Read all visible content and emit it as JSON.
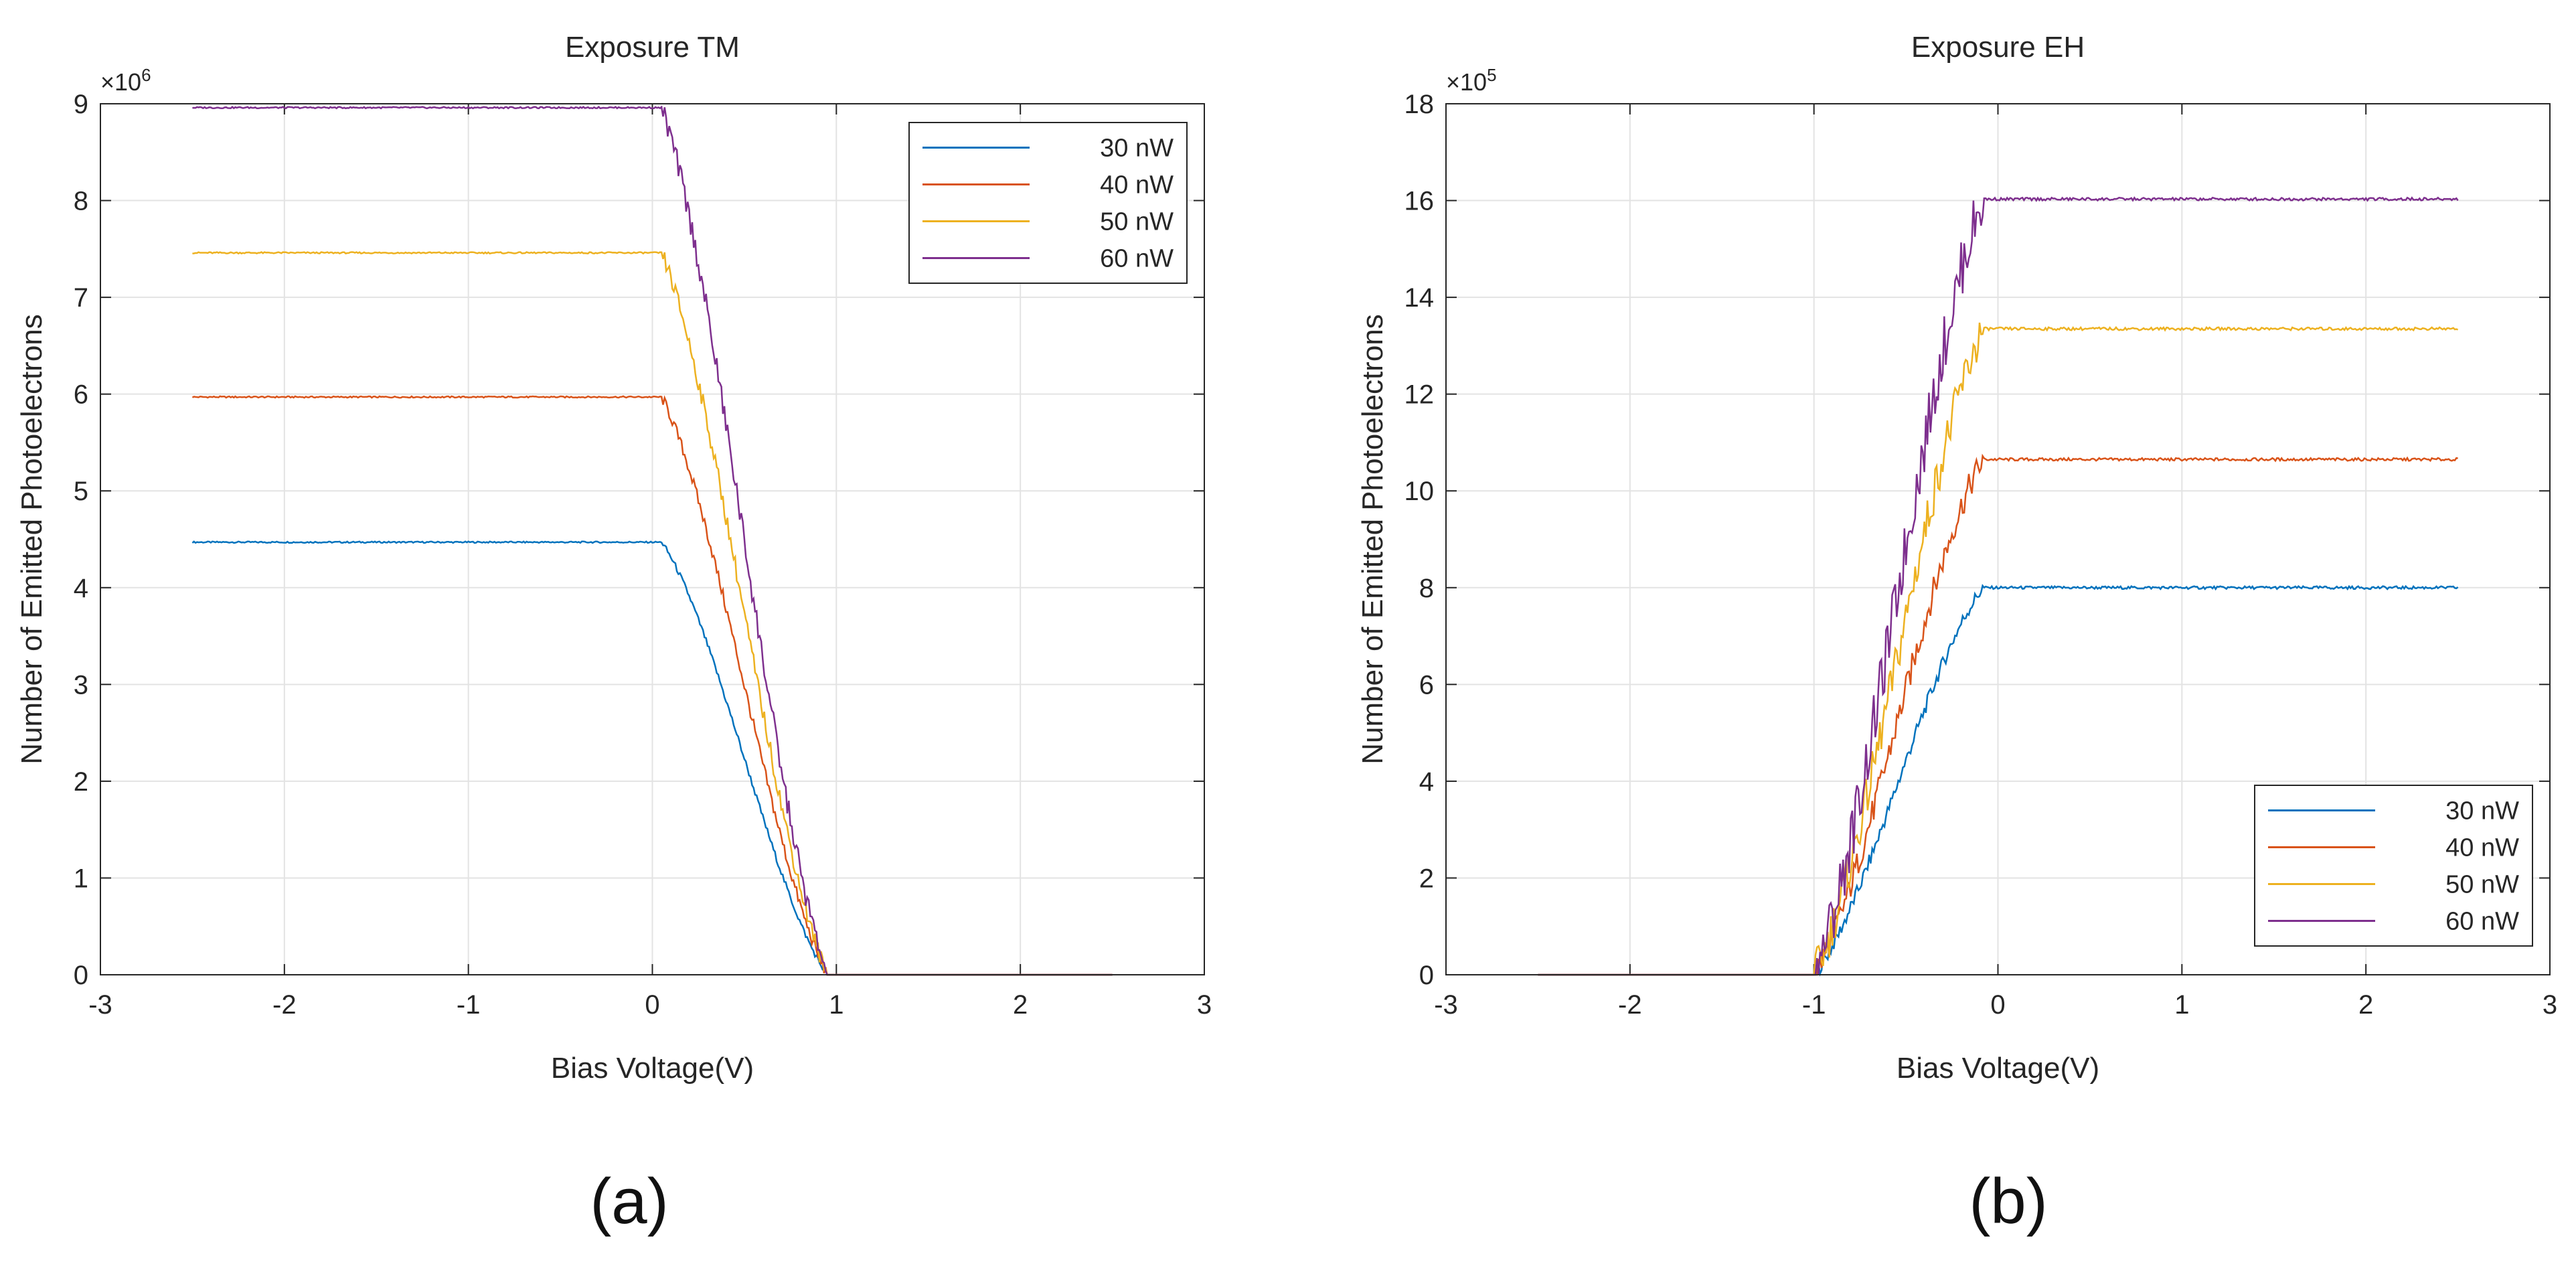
{
  "chart_data": [
    {
      "type": "line",
      "panel": "(a)",
      "title": "Exposure TM",
      "xlabel": "Bias Voltage(V)",
      "ylabel": "Number of Emitted Photoelectrons",
      "y_multiplier": "×10",
      "y_exponent": "6",
      "xlim": [
        -3,
        3
      ],
      "ylim": [
        0,
        9
      ],
      "xticks": [
        "-3",
        "-2",
        "-1",
        "0",
        "1",
        "2",
        "3"
      ],
      "yticks": [
        "0",
        "1",
        "2",
        "3",
        "4",
        "5",
        "6",
        "7",
        "8",
        "9"
      ],
      "grid": true,
      "legend_position": "top-right",
      "x_range": [
        -2.5,
        2.5
      ],
      "knee_x": 0.05,
      "zero_x": 0.95,
      "series": [
        {
          "name": "30 nW",
          "color": "#0072BD",
          "plateau": 4.47
        },
        {
          "name": "40 nW",
          "color": "#D95319",
          "plateau": 5.97
        },
        {
          "name": "50 nW",
          "color": "#EDB120",
          "plateau": 7.46
        },
        {
          "name": "60 nW",
          "color": "#7E2F8E",
          "plateau": 8.96
        }
      ]
    },
    {
      "type": "line",
      "panel": "(b)",
      "title": "Exposure EH",
      "xlabel": "Bias Voltage(V)",
      "ylabel": "Number of Emitted Photoelectrons",
      "y_multiplier": "×10",
      "y_exponent": "5",
      "xlim": [
        -3,
        3
      ],
      "ylim": [
        0,
        18
      ],
      "xticks": [
        "-3",
        "-2",
        "-1",
        "0",
        "1",
        "2",
        "3"
      ],
      "yticks": [
        "0",
        "2",
        "4",
        "6",
        "8",
        "10",
        "12",
        "14",
        "16",
        "18"
      ],
      "grid": true,
      "legend_position": "bottom-right",
      "x_range": [
        -2.5,
        2.5
      ],
      "onset_x": -1.0,
      "knee_x": -0.08,
      "series": [
        {
          "name": "30 nW",
          "color": "#0072BD",
          "plateau": 8.0
        },
        {
          "name": "40 nW",
          "color": "#D95319",
          "plateau": 10.65
        },
        {
          "name": "50 nW",
          "color": "#EDB120",
          "plateau": 13.35
        },
        {
          "name": "60 nW",
          "color": "#7E2F8E",
          "plateau": 16.03
        }
      ]
    }
  ],
  "captions": {
    "a": "(a)",
    "b": "(b)"
  }
}
